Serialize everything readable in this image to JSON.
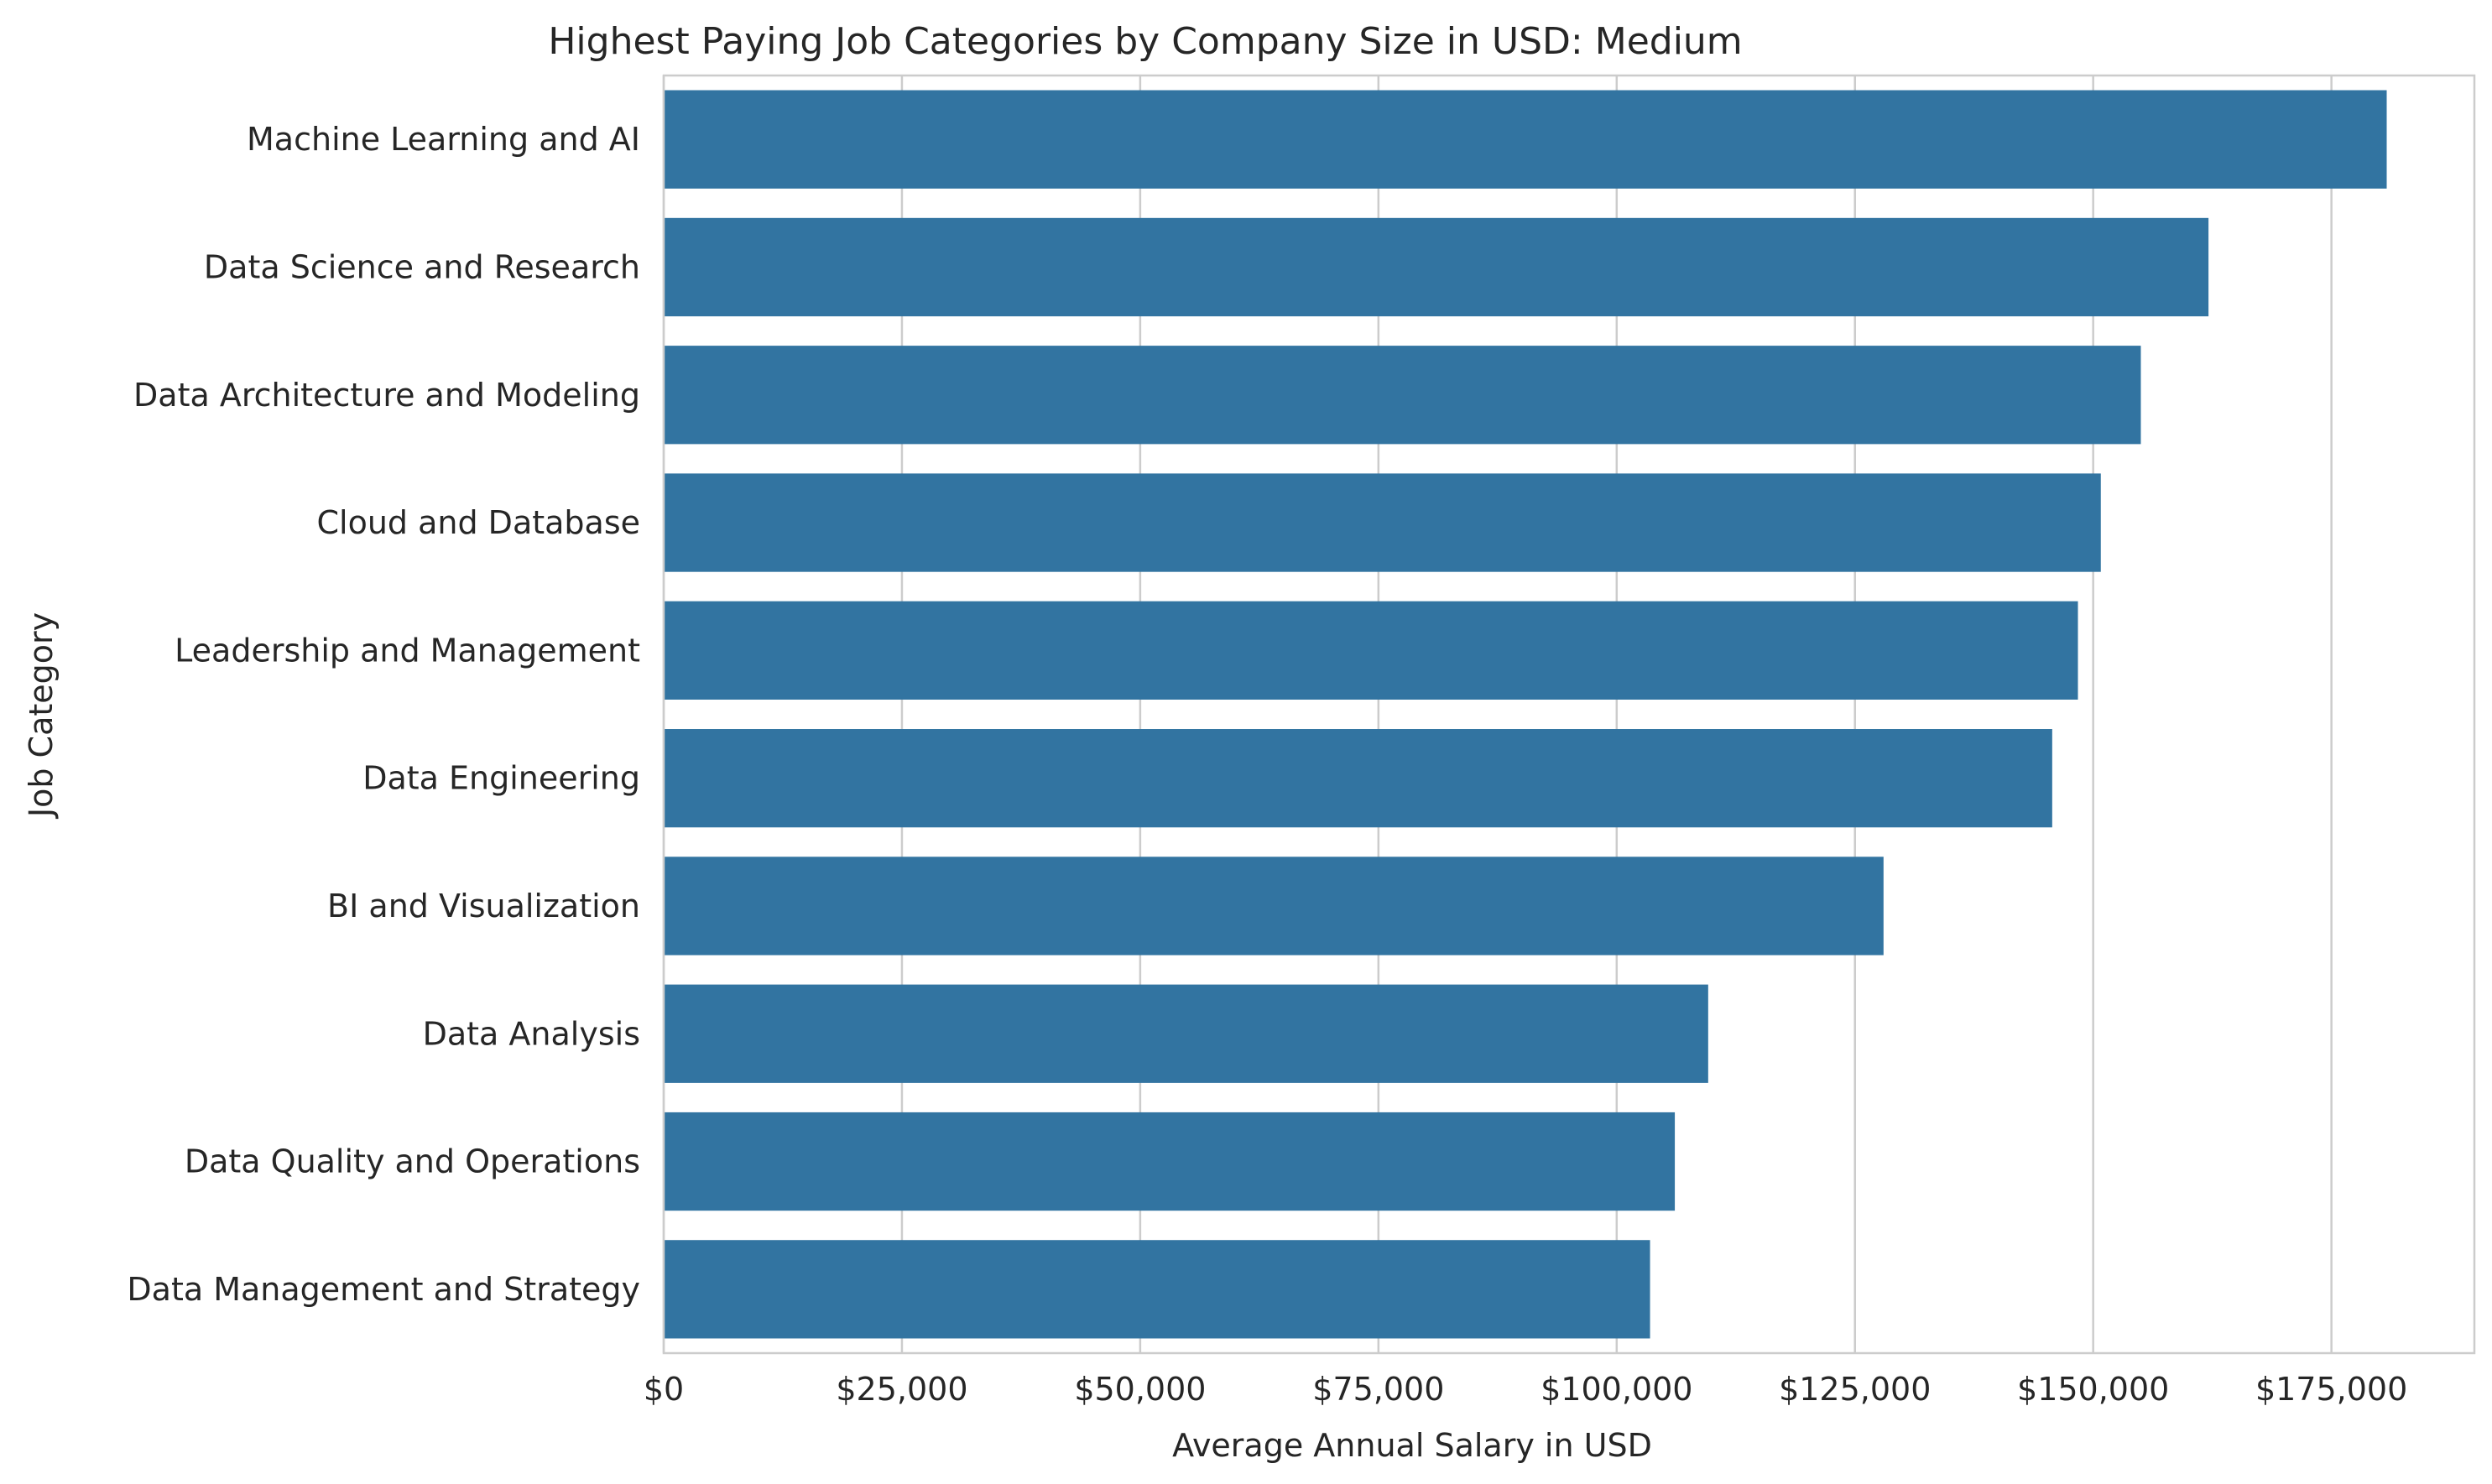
{
  "chart_data": {
    "type": "bar",
    "orientation": "horizontal",
    "title": "Highest Paying Job Categories by Company Size in USD: Medium",
    "xlabel": "Average Annual Salary in USD",
    "ylabel": "Job Category",
    "categories": [
      "Machine Learning and AI",
      "Data Science and Research",
      "Data Architecture and Modeling",
      "Cloud and Database",
      "Leadership and Management",
      "Data Engineering",
      "BI and Visualization",
      "Data Analysis",
      "Data Quality and Operations",
      "Data Management and Strategy"
    ],
    "values": [
      180800,
      162100,
      155000,
      150800,
      148400,
      145700,
      128000,
      109600,
      106100,
      103500
    ],
    "xlim": [
      0,
      190000
    ],
    "xticks": [
      0,
      25000,
      50000,
      75000,
      100000,
      125000,
      150000,
      175000
    ],
    "xtick_labels": [
      "$0",
      "$25,000",
      "$50,000",
      "$75,000",
      "$100,000",
      "$125,000",
      "$150,000",
      "$175,000"
    ],
    "grid": true,
    "colors": {
      "bar": "#3274a1",
      "grid": "#cccccc",
      "text": "#262626"
    }
  }
}
